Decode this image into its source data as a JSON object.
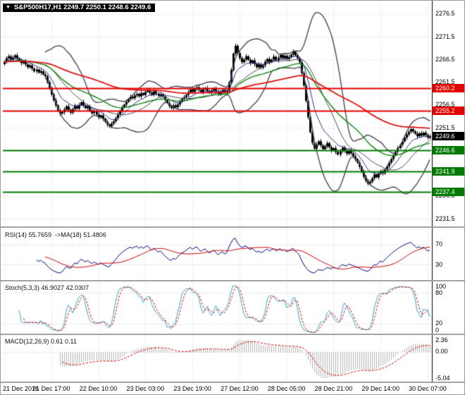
{
  "title_overlay": {
    "marker": "▼",
    "text": "S&P500H17,H1 2249.7 2250.1 2248.6 2249.6",
    "bg": "#000000",
    "fg": "#ffffff"
  },
  "x_axis": {
    "labels": [
      "21 Dec 2016",
      "21 Dec 17:00",
      "22 Dec 10:00",
      "23 Dec 03:00",
      "23 Dec 19:00",
      "27 Dec 12:00",
      "28 Dec 05:00",
      "28 Dec 21:00",
      "29 Dec 14:00",
      "30 Dec 07:00"
    ],
    "bar_indices": [
      0,
      22,
      44,
      66,
      88,
      110,
      132,
      154,
      176,
      198
    ]
  },
  "panels": {
    "main": {
      "view": [
        2229.8,
        2278.8
      ],
      "y_ticks": [
        "2276.5",
        "2271.5",
        "2266.5",
        "2261.5",
        "2256.5",
        "2251.5",
        "2246.5",
        "2241.5",
        "2236.5",
        "2231.5"
      ],
      "grid_color": "#d6d6d6",
      "candle_color": "#000000",
      "bollinger": {
        "period": 20,
        "deviation": 2,
        "color": "#4a4a58"
      },
      "mas": [
        {
          "period": 10,
          "color": "#2d2d8f",
          "width": 1
        },
        {
          "period": 34,
          "color": "#0c860c",
          "width": 1.4
        },
        {
          "period": 96,
          "color": "#e01010",
          "width": 1.8
        }
      ],
      "price_lines": [
        {
          "value": 2260.2,
          "label": "2260.2",
          "color": "#e60000"
        },
        {
          "value": 2255.2,
          "label": "2255.2",
          "color": "#e60000"
        },
        {
          "value": 2246.6,
          "label": "2246.6",
          "color": "#017a01"
        },
        {
          "value": 2241.9,
          "label": "2241.9",
          "color": "#017a01"
        },
        {
          "value": 2237.4,
          "label": "2237.4",
          "color": "#017a01"
        }
      ],
      "current_price": {
        "value": 2249.6,
        "label": "2249.6",
        "color": "#000000"
      }
    },
    "rsi": {
      "label": "RSI(14) 55.7659  ->MA(18) 51.4806",
      "period": 14,
      "ma_period": 18,
      "view": [
        0,
        100
      ],
      "ticks": [
        "70",
        "30"
      ],
      "levels": [
        70,
        30
      ],
      "line_color": "#00007f",
      "ma_color": "#cc0000",
      "level_color": "#c8c8c8"
    },
    "stoch": {
      "label": "Stoch(5,3,3) 46.9027 42.0307",
      "k": 5,
      "d": 3,
      "slowing": 3,
      "view": [
        0,
        100
      ],
      "ticks": [
        "100",
        "80",
        "20",
        "0"
      ],
      "levels": [
        80,
        20
      ],
      "line_color": "#2aa9c9",
      "signal_color": "#dd0000",
      "level_color": "#c8c8c8"
    },
    "macd": {
      "label": "MACD(12,26,9) 0.61 0.11",
      "fast": 12,
      "slow": 26,
      "signal": 9,
      "view": [
        -5.6,
        2.9
      ],
      "ticks": [
        "2.36",
        "0.00",
        "-5.04"
      ],
      "hist_color": "#b4b4b4",
      "signal_color": "#dd0000",
      "zero_color": "#c8c8c8"
    }
  },
  "chart_data": {
    "type": "candlestick",
    "symbol": "S&P500H17",
    "timeframe": "H1",
    "ohlc_display": {
      "open": "2249.7",
      "high": "2250.1",
      "low": "2248.6",
      "close": "2249.6"
    },
    "first_open": 2265.5,
    "closes": [
      2266.0,
      2266.8,
      2267.2,
      2266.5,
      2266.9,
      2267.4,
      2266.8,
      2266.2,
      2265.7,
      2266.1,
      2265.4,
      2264.8,
      2265.2,
      2264.5,
      2263.9,
      2264.3,
      2263.6,
      2263.9,
      2263.2,
      2262.8,
      2261.5,
      2260.2,
      2258.8,
      2257.5,
      2256.4,
      2255.2,
      2254.6,
      2254.9,
      2255.5,
      2256.2,
      2255.4,
      2254.8,
      2255.6,
      2256.3,
      2255.7,
      2256.5,
      2257.1,
      2256.4,
      2255.8,
      2256.2,
      2255.3,
      2254.7,
      2255.1,
      2254.4,
      2253.8,
      2254.2,
      2253.5,
      2252.8,
      2252.2,
      2251.8,
      2252.4,
      2252.9,
      2253.6,
      2254.4,
      2255.2,
      2255.9,
      2256.6,
      2257.2,
      2257.8,
      2258.3,
      2258.0,
      2258.6,
      2258.9,
      2258.4,
      2259.1,
      2258.7,
      2259.4,
      2259.8,
      2259.2,
      2258.8,
      2259.5,
      2259.0,
      2258.5,
      2258.9,
      2258.3,
      2257.6,
      2256.9,
      2256.3,
      2255.8,
      2256.4,
      2256.0,
      2256.6,
      2257.2,
      2257.8,
      2258.2,
      2258.7,
      2259.3,
      2259.9,
      2259.4,
      2260.0,
      2260.4,
      2259.8,
      2259.3,
      2259.9,
      2260.2,
      2259.6,
      2259.1,
      2259.7,
      2260.1,
      2259.5,
      2258.9,
      2259.4,
      2259.8,
      2259.2,
      2259.6,
      2261.5,
      2264.2,
      2267.8,
      2269.5,
      2267.9,
      2266.8,
      2265.9,
      2266.5,
      2267.2,
      2266.4,
      2265.7,
      2266.3,
      2265.5,
      2264.8,
      2265.4,
      2264.7,
      2265.2,
      2266.0,
      2266.6,
      2265.9,
      2266.5,
      2267.1,
      2266.3,
      2266.9,
      2267.5,
      2266.8,
      2267.3,
      2266.6,
      2267.0,
      2267.6,
      2268.2,
      2267.4,
      2266.8,
      2265.9,
      2263.5,
      2260.8,
      2257.4,
      2253.8,
      2250.5,
      2248.2,
      2246.9,
      2247.8,
      2248.5,
      2247.6,
      2246.8,
      2247.4,
      2248.1,
      2247.2,
      2246.5,
      2247.0,
      2246.2,
      2245.6,
      2246.3,
      2247.1,
      2246.4,
      2245.8,
      2246.5,
      2245.9,
      2245.2,
      2244.6,
      2243.8,
      2242.9,
      2241.8,
      2240.7,
      2239.8,
      2239.2,
      2239.6,
      2240.4,
      2241.2,
      2240.6,
      2241.4,
      2242.0,
      2241.5,
      2242.3,
      2243.0,
      2243.8,
      2244.6,
      2245.4,
      2246.2,
      2247.0,
      2247.8,
      2248.5,
      2249.3,
      2250.0,
      2250.6,
      2251.2,
      2250.7,
      2250.2,
      2249.6,
      2250.3,
      2249.8,
      2250.4,
      2249.9,
      2249.3,
      2249.6
    ]
  }
}
